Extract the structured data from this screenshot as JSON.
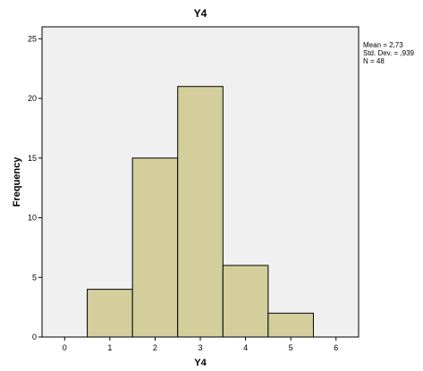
{
  "chart_data": {
    "type": "bar",
    "title": "Y4",
    "xlabel": "Y4",
    "ylabel": "Frequency",
    "categories": [
      "1",
      "2",
      "3",
      "4",
      "5"
    ],
    "bins": [
      1,
      2,
      3,
      4,
      5
    ],
    "values": [
      4,
      15,
      21,
      6,
      2
    ],
    "xlim": [
      -0.5,
      6.5
    ],
    "ylim": [
      0,
      26
    ],
    "x_ticks": [
      0,
      1,
      2,
      3,
      4,
      5,
      6
    ],
    "y_ticks": [
      0,
      5,
      10,
      15,
      20,
      25
    ],
    "grid": false,
    "plot_background": "#F0F0F0",
    "bar_color": "#D3CE9B",
    "bar_edge_color": "#000000",
    "legend_position": "top-right",
    "stats": [
      "Mean = 2,73",
      "Std. Dev. = ,939",
      "N = 48"
    ]
  }
}
